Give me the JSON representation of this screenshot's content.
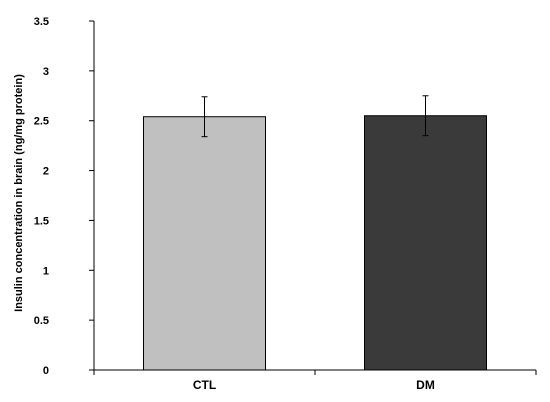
{
  "chart_data": {
    "type": "bar",
    "title": "",
    "xlabel": "",
    "ylabel": "Insulin concentration in brain  (ng/mg protein)",
    "categories": [
      "CTL",
      "DM"
    ],
    "values": [
      2.54,
      2.55
    ],
    "errors": [
      0.2,
      0.2
    ],
    "ylim": [
      0,
      3.5
    ],
    "yticks": [
      0,
      0.5,
      1,
      1.5,
      2,
      2.5,
      3,
      3.5
    ],
    "ytick_labels": [
      "0",
      "0.5",
      "1",
      "1.5",
      "2",
      "2.5",
      "3",
      "3.5"
    ],
    "grid": false,
    "legend": "none",
    "colors": {
      "CTL": "#c0c0c0",
      "DM": "#3a3a3a",
      "axis": "#000000"
    }
  }
}
